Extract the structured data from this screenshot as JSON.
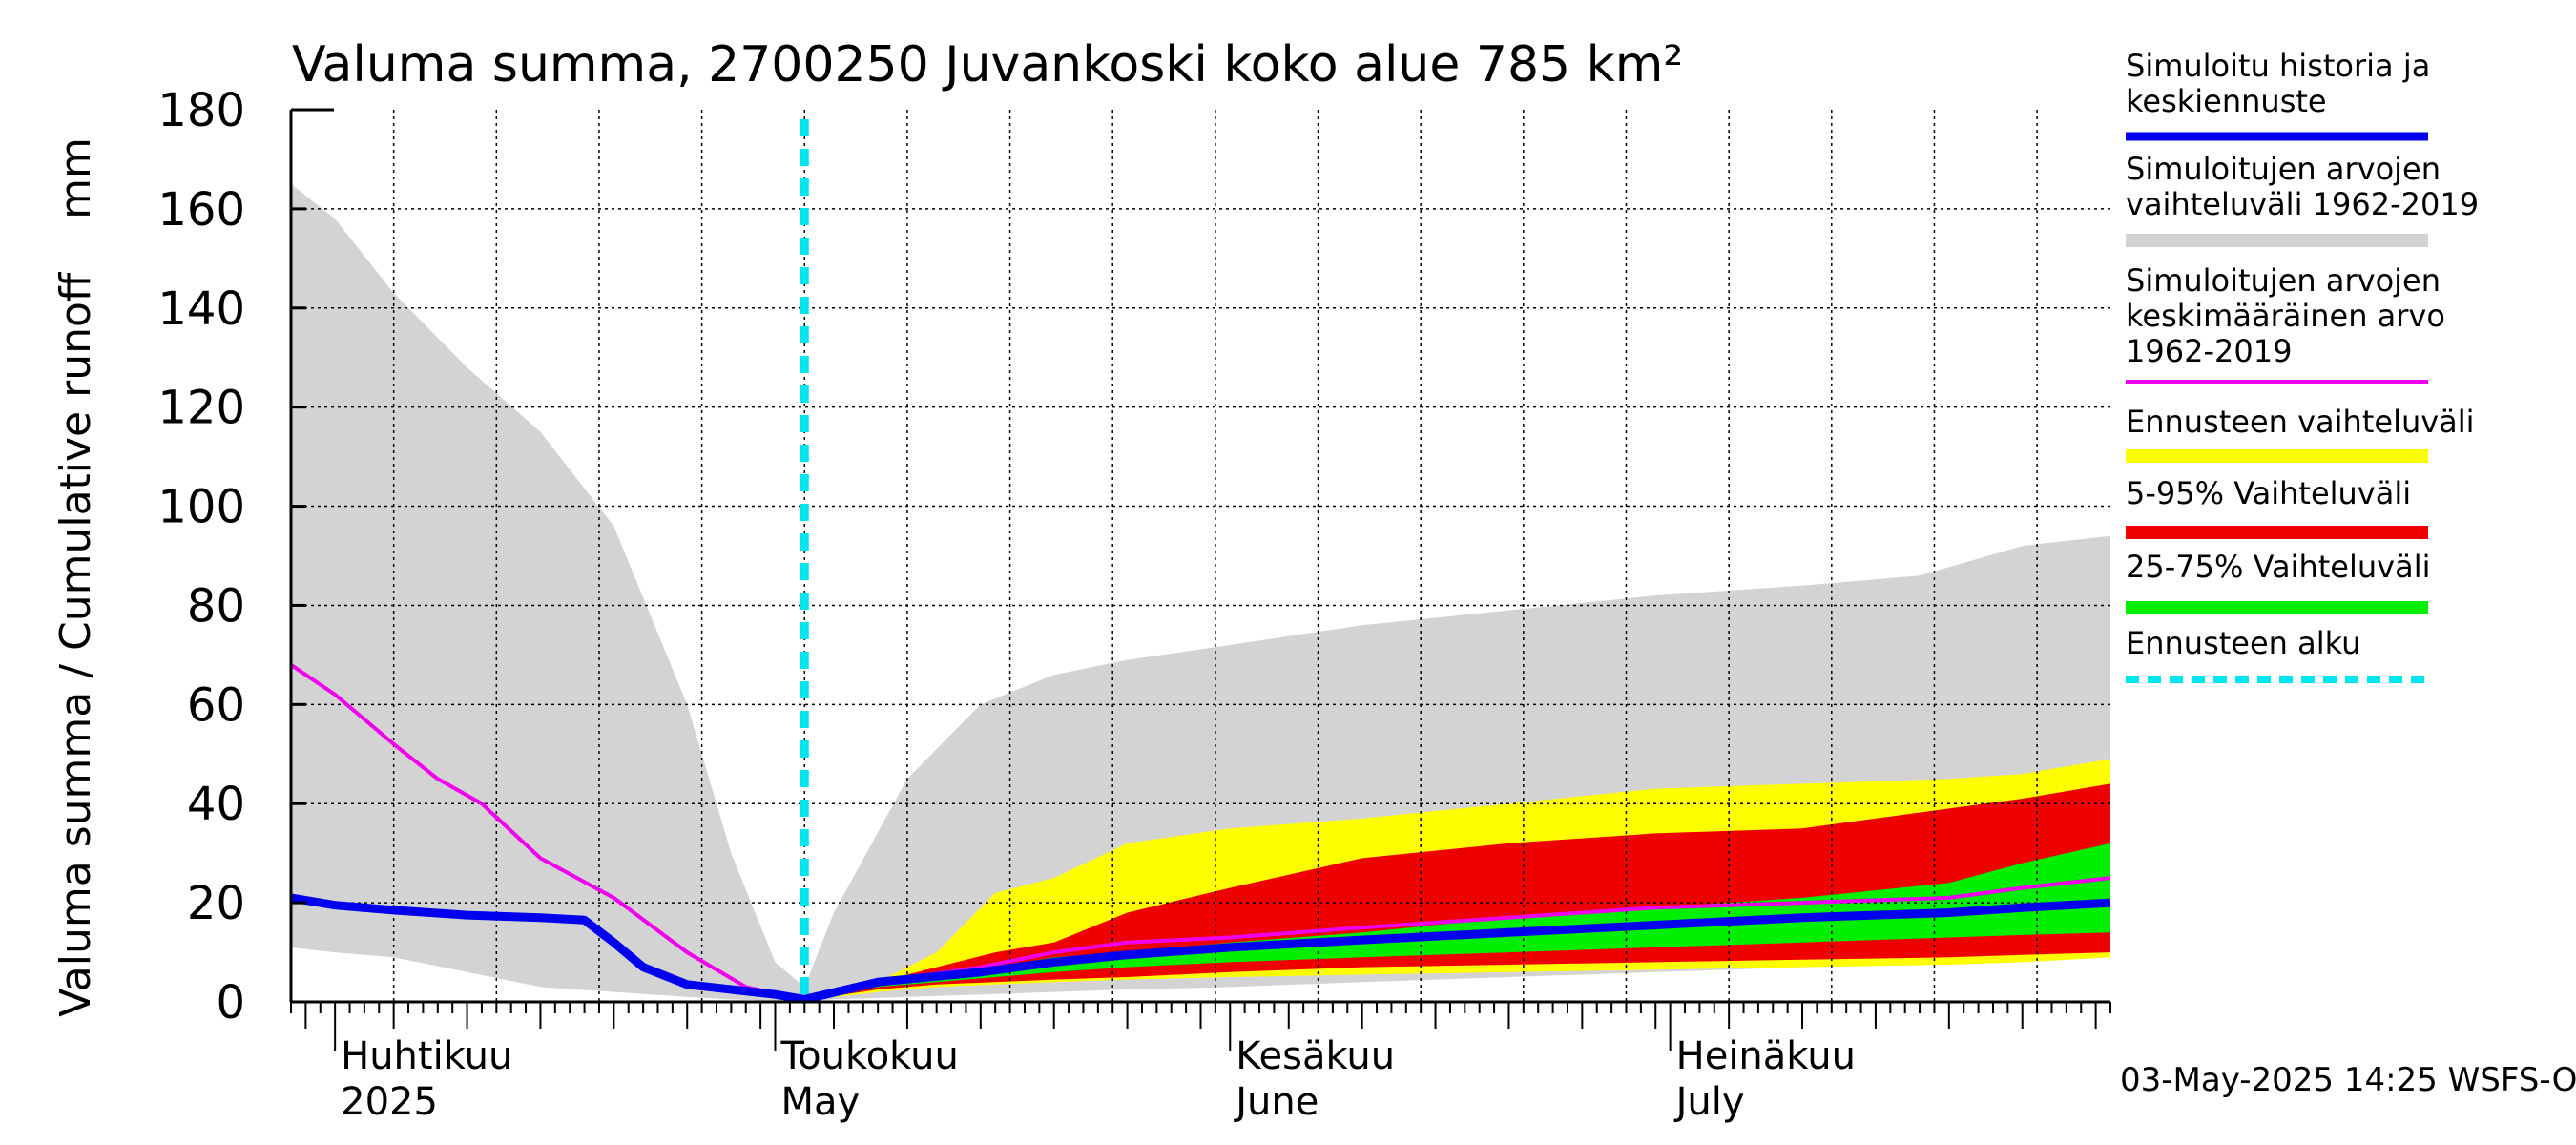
{
  "chart_data": {
    "type": "area",
    "title": "Valuma summa, 2700250 Juvankoski koko alue 785 km²",
    "ylabel": "Valuma summa / Cumulative runoff    mm",
    "ylim": [
      0,
      180
    ],
    "yticks": [
      0,
      20,
      40,
      60,
      80,
      100,
      120,
      140,
      160,
      180
    ],
    "xlim": [
      "2025-03-29",
      "2025-07-31"
    ],
    "grid": true,
    "forecast_start": "2025-05-03",
    "month_labels": [
      {
        "fi": "Huhtikuu",
        "en": "2025",
        "date": "2025-04-01"
      },
      {
        "fi": "Toukokuu",
        "en": "May",
        "date": "2025-05-01"
      },
      {
        "fi": "Kesäkuu",
        "en": "June",
        "date": "2025-06-01"
      },
      {
        "fi": "Heinäkuu",
        "en": "July",
        "date": "2025-07-01"
      }
    ],
    "footer": "03-May-2025 14:25 WSFS-O",
    "legend": [
      {
        "label": "Simuloitu historia ja\nkeskiennuste",
        "color": "#0000ee",
        "style": "line"
      },
      {
        "label": "Simuloitujen arvojen\nvaihteluväli 1962-2019",
        "color": "#d3d3d3",
        "style": "band"
      },
      {
        "label": "Simuloitujen arvojen\nkeskimääräinen arvo\n   1962-2019",
        "color": "#ee00ee",
        "style": "thin"
      },
      {
        "label": "Ennusteen vaihteluväli",
        "color": "#ffff00",
        "style": "band"
      },
      {
        "label": "5-95% Vaihteluväli",
        "color": "#ee0000",
        "style": "band"
      },
      {
        "label": "25-75% Vaihteluväli",
        "color": "#00ee00",
        "style": "band"
      },
      {
        "label": "Ennusteen alku",
        "color": "#00e5ee",
        "style": "dashed"
      }
    ],
    "series": [
      {
        "name": "Simuloitujen arvojen vaihteluväli 1962-2019",
        "kind": "band",
        "color": "#d3d3d3",
        "x": [
          "2025-03-29",
          "2025-04-01",
          "2025-04-05",
          "2025-04-10",
          "2025-04-15",
          "2025-04-20",
          "2025-04-25",
          "2025-04-28",
          "2025-05-01",
          "2025-05-03",
          "2025-05-05",
          "2025-05-10",
          "2025-05-15",
          "2025-05-20",
          "2025-05-25",
          "2025-06-01",
          "2025-06-10",
          "2025-06-20",
          "2025-06-30",
          "2025-07-10",
          "2025-07-18",
          "2025-07-25",
          "2025-07-31"
        ],
        "upper": [
          165,
          158,
          143,
          128,
          115,
          96,
          60,
          30,
          8,
          3,
          18,
          45,
          60,
          66,
          69,
          72,
          76,
          79,
          82,
          84,
          86,
          92,
          94
        ],
        "lower": [
          11,
          10,
          9,
          6,
          3,
          2,
          1,
          0.5,
          0.2,
          0.1,
          0.5,
          1,
          1.5,
          2,
          2.5,
          3,
          4,
          5,
          6,
          7,
          7.5,
          8,
          9
        ]
      },
      {
        "name": "Ennusteen vaihteluväli",
        "kind": "band",
        "color": "#ffff00",
        "x": [
          "2025-05-03",
          "2025-05-08",
          "2025-05-12",
          "2025-05-16",
          "2025-05-20",
          "2025-05-25",
          "2025-06-01",
          "2025-06-10",
          "2025-06-20",
          "2025-06-30",
          "2025-07-10",
          "2025-07-20",
          "2025-07-25",
          "2025-07-31"
        ],
        "upper": [
          0.5,
          4,
          10,
          22,
          25,
          32,
          35,
          37,
          40,
          43,
          44,
          45,
          46,
          49
        ],
        "lower": [
          0.2,
          2,
          3,
          3.5,
          4,
          4.5,
          5,
          5.5,
          6,
          6.5,
          7,
          7.5,
          8,
          9
        ]
      },
      {
        "name": "5-95% Vaihteluväli",
        "kind": "band",
        "color": "#ee0000",
        "x": [
          "2025-05-03",
          "2025-05-08",
          "2025-05-12",
          "2025-05-16",
          "2025-05-20",
          "2025-05-25",
          "2025-06-01",
          "2025-06-10",
          "2025-06-20",
          "2025-06-30",
          "2025-07-10",
          "2025-07-20",
          "2025-07-25",
          "2025-07-31"
        ],
        "upper": [
          0.5,
          4,
          7,
          10,
          12,
          18,
          23,
          29,
          32,
          34,
          35,
          39,
          41,
          44
        ],
        "lower": [
          0.3,
          2.5,
          3.5,
          4,
          4.5,
          5,
          6,
          7,
          7.5,
          8,
          8.5,
          9,
          9.5,
          10
        ]
      },
      {
        "name": "25-75% Vaihteluväli",
        "kind": "band",
        "color": "#00ee00",
        "x": [
          "2025-05-03",
          "2025-05-08",
          "2025-05-12",
          "2025-05-16",
          "2025-05-20",
          "2025-05-25",
          "2025-06-01",
          "2025-06-10",
          "2025-06-20",
          "2025-06-30",
          "2025-07-10",
          "2025-07-20",
          "2025-07-25",
          "2025-07-31"
        ],
        "upper": [
          0.5,
          4,
          5.5,
          7,
          9,
          10,
          12,
          14,
          17,
          19,
          21,
          24,
          28,
          32
        ],
        "lower": [
          0.4,
          3,
          4,
          5,
          6,
          7,
          8,
          9,
          10,
          11,
          12,
          13,
          13.5,
          14
        ]
      },
      {
        "name": "Simuloitujen arvojen keskimääräinen arvo 1962-2019",
        "kind": "line",
        "color": "#ee00ee",
        "x": [
          "2025-03-29",
          "2025-04-01",
          "2025-04-05",
          "2025-04-08",
          "2025-04-11",
          "2025-04-15",
          "2025-04-20",
          "2025-04-25",
          "2025-04-29",
          "2025-05-03",
          "2025-05-08",
          "2025-05-15",
          "2025-05-20",
          "2025-05-25",
          "2025-06-01",
          "2025-06-10",
          "2025-06-20",
          "2025-06-30",
          "2025-07-10",
          "2025-07-20",
          "2025-07-25",
          "2025-07-31"
        ],
        "y": [
          68,
          62,
          52,
          45,
          40,
          29,
          21,
          10,
          3,
          0.5,
          4,
          7,
          10,
          12,
          13,
          15,
          17,
          19,
          20,
          21,
          23,
          25
        ]
      },
      {
        "name": "Simuloitu historia ja keskiennuste",
        "kind": "line",
        "color": "#0000ee",
        "x": [
          "2025-03-29",
          "2025-04-01",
          "2025-04-05",
          "2025-04-10",
          "2025-04-15",
          "2025-04-18",
          "2025-04-20",
          "2025-04-22",
          "2025-04-25",
          "2025-04-28",
          "2025-05-01",
          "2025-05-03",
          "2025-05-08",
          "2025-05-15",
          "2025-05-20",
          "2025-05-25",
          "2025-06-01",
          "2025-06-10",
          "2025-06-20",
          "2025-06-30",
          "2025-07-10",
          "2025-07-20",
          "2025-07-25",
          "2025-07-31"
        ],
        "y": [
          21,
          19.5,
          18.5,
          17.5,
          17,
          16.5,
          12,
          7,
          3.5,
          2.5,
          1.5,
          0.5,
          4,
          6,
          8,
          9.5,
          11,
          12.5,
          14,
          15.5,
          17,
          18,
          19,
          20
        ]
      }
    ]
  }
}
